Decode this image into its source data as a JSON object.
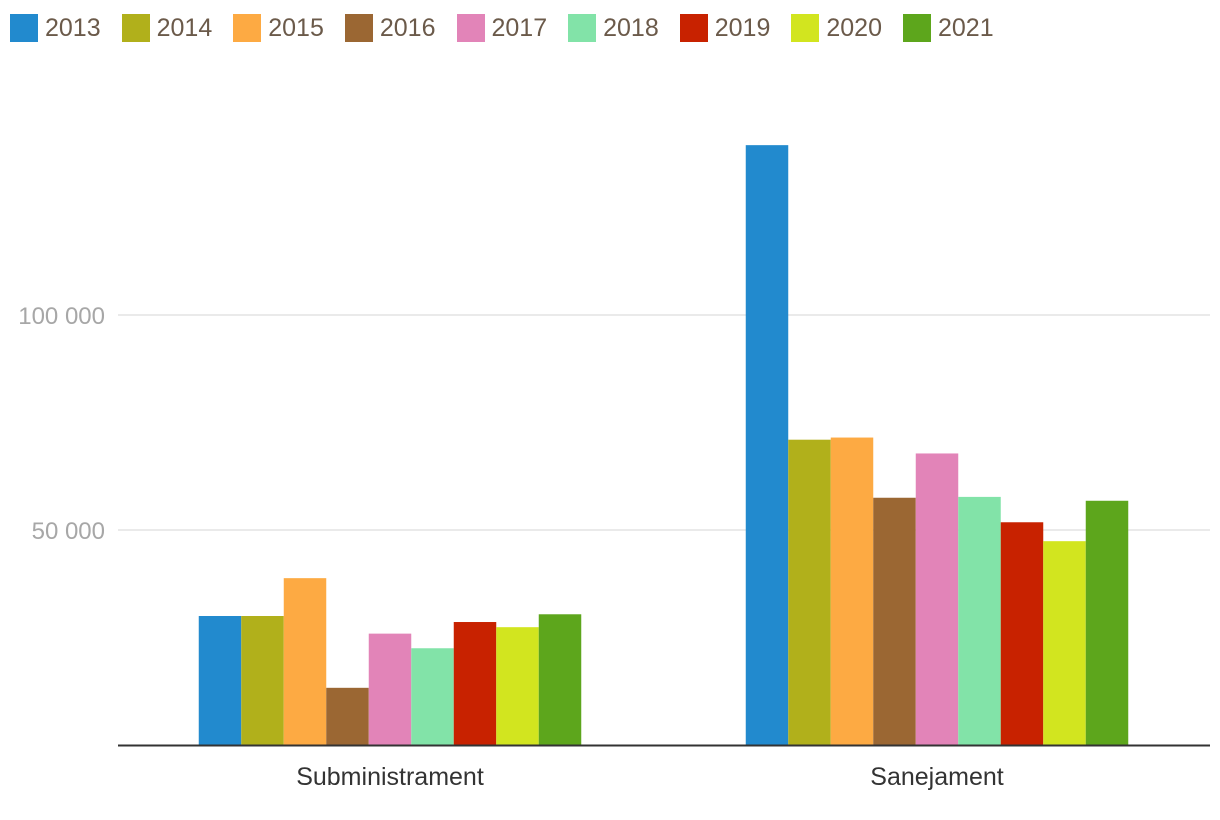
{
  "chart_data": {
    "type": "bar",
    "title": "",
    "xlabel": "",
    "ylabel": "",
    "categories": [
      "Subministrament",
      "Sanejament"
    ],
    "ylim": [
      0,
      140000
    ],
    "yticks": [
      50000,
      100000
    ],
    "ytick_labels": [
      "50 000",
      "100 000"
    ],
    "grid": true,
    "legend_position": "top-left",
    "series": [
      {
        "name": "2013",
        "color": "#228ACE",
        "values": [
          30000,
          139500
        ]
      },
      {
        "name": "2014",
        "color": "#B1B01B",
        "values": [
          30000,
          71000
        ]
      },
      {
        "name": "2015",
        "color": "#FDAA43",
        "values": [
          38800,
          71500
        ]
      },
      {
        "name": "2016",
        "color": "#9B6733",
        "values": [
          13300,
          57500
        ]
      },
      {
        "name": "2017",
        "color": "#E284B8",
        "values": [
          25900,
          67800
        ]
      },
      {
        "name": "2018",
        "color": "#82E3A8",
        "values": [
          22500,
          57700
        ]
      },
      {
        "name": "2019",
        "color": "#C82200",
        "values": [
          28600,
          51800
        ]
      },
      {
        "name": "2020",
        "color": "#D2E51F",
        "values": [
          27400,
          47400
        ]
      },
      {
        "name": "2021",
        "color": "#5DA61C",
        "values": [
          30400,
          56800
        ]
      }
    ]
  }
}
